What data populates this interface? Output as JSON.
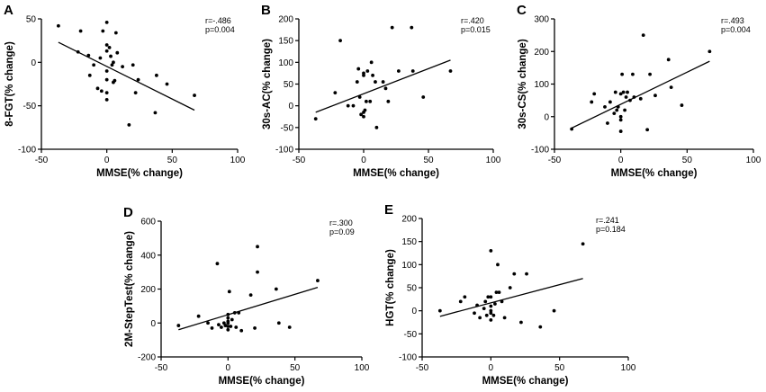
{
  "chart_data": [
    {
      "type": "scatter",
      "panel": "A",
      "xlabel": "MMSE(% change)",
      "ylabel": "8-FGT(% change)",
      "xlim": [
        -50,
        100
      ],
      "ylim": [
        -100,
        50
      ],
      "xticks": [
        -50,
        0,
        50,
        100
      ],
      "yticks": [
        -100,
        -50,
        0,
        50
      ],
      "annotation": [
        "r=-.486",
        "p=0.004"
      ],
      "fit": {
        "x": [
          -37,
          67
        ],
        "y": [
          23,
          -55
        ]
      },
      "points": [
        [
          -37,
          42
        ],
        [
          -22,
          12
        ],
        [
          -20,
          36
        ],
        [
          -14,
          8
        ],
        [
          -13,
          -15
        ],
        [
          -10,
          -3
        ],
        [
          -7,
          -30
        ],
        [
          -5,
          5
        ],
        [
          -4,
          -33
        ],
        [
          -3,
          36
        ],
        [
          0,
          46
        ],
        [
          0,
          20
        ],
        [
          0,
          13
        ],
        [
          0,
          -10
        ],
        [
          0,
          -20
        ],
        [
          0,
          -35
        ],
        [
          0,
          -43
        ],
        [
          2,
          17
        ],
        [
          3,
          7
        ],
        [
          4,
          -3
        ],
        [
          5,
          0
        ],
        [
          5,
          -23
        ],
        [
          6,
          -21
        ],
        [
          7,
          34
        ],
        [
          8,
          11
        ],
        [
          12,
          -5
        ],
        [
          17,
          -72
        ],
        [
          20,
          -3
        ],
        [
          22,
          -35
        ],
        [
          24,
          -20
        ],
        [
          37,
          -58
        ],
        [
          38,
          -15
        ],
        [
          46,
          -25
        ],
        [
          67,
          -38
        ]
      ]
    },
    {
      "type": "scatter",
      "panel": "B",
      "xlabel": "MMSE(% change)",
      "ylabel": "30s-AC(% change)",
      "xlim": [
        -50,
        100
      ],
      "ylim": [
        -100,
        200
      ],
      "xticks": [
        -50,
        0,
        50,
        100
      ],
      "yticks": [
        -100,
        -50,
        0,
        50,
        100,
        150,
        200
      ],
      "annotation": [
        "r=.420",
        "p=0.015"
      ],
      "fit": {
        "x": [
          -37,
          67
        ],
        "y": [
          -15,
          105
        ]
      },
      "points": [
        [
          -37,
          -30
        ],
        [
          -22,
          30
        ],
        [
          -18,
          150
        ],
        [
          -12,
          0
        ],
        [
          -8,
          0
        ],
        [
          -5,
          55
        ],
        [
          -4,
          85
        ],
        [
          -3,
          20
        ],
        [
          -2,
          -20
        ],
        [
          0,
          -15
        ],
        [
          0,
          -25
        ],
        [
          0,
          75
        ],
        [
          0,
          70
        ],
        [
          1,
          -10
        ],
        [
          2,
          10
        ],
        [
          3,
          80
        ],
        [
          5,
          10
        ],
        [
          6,
          100
        ],
        [
          7,
          70
        ],
        [
          9,
          55
        ],
        [
          10,
          -50
        ],
        [
          15,
          55
        ],
        [
          17,
          40
        ],
        [
          19,
          10
        ],
        [
          22,
          180
        ],
        [
          27,
          80
        ],
        [
          37,
          180
        ],
        [
          38,
          80
        ],
        [
          46,
          20
        ],
        [
          67,
          80
        ]
      ]
    },
    {
      "type": "scatter",
      "panel": "C",
      "xlabel": "MMSE(% change)",
      "ylabel": "30s-CS(% change)",
      "xlim": [
        -50,
        100
      ],
      "ylim": [
        -100,
        300
      ],
      "xticks": [
        -50,
        0,
        50,
        100
      ],
      "yticks": [
        -100,
        0,
        100,
        200,
        300
      ],
      "annotation": [
        "r=.493",
        "p=0.004"
      ],
      "fit": {
        "x": [
          -37,
          67
        ],
        "y": [
          -35,
          170
        ]
      },
      "points": [
        [
          -37,
          -38
        ],
        [
          -22,
          45
        ],
        [
          -20,
          70
        ],
        [
          -12,
          30
        ],
        [
          -10,
          -20
        ],
        [
          -8,
          45
        ],
        [
          -5,
          10
        ],
        [
          -4,
          75
        ],
        [
          -3,
          20
        ],
        [
          -2,
          30
        ],
        [
          0,
          70
        ],
        [
          0,
          0
        ],
        [
          0,
          -10
        ],
        [
          0,
          -45
        ],
        [
          1,
          130
        ],
        [
          2,
          75
        ],
        [
          3,
          20
        ],
        [
          4,
          60
        ],
        [
          5,
          75
        ],
        [
          7,
          50
        ],
        [
          9,
          130
        ],
        [
          10,
          60
        ],
        [
          15,
          55
        ],
        [
          17,
          250
        ],
        [
          20,
          -40
        ],
        [
          22,
          130
        ],
        [
          26,
          65
        ],
        [
          36,
          175
        ],
        [
          38,
          90
        ],
        [
          46,
          35
        ],
        [
          67,
          200
        ]
      ]
    },
    {
      "type": "scatter",
      "panel": "D",
      "xlabel": "MMSE(% change)",
      "ylabel": "2M-StepTest(% change)",
      "xlim": [
        -50,
        100
      ],
      "ylim": [
        -200,
        600
      ],
      "xticks": [
        -50,
        0,
        50,
        100
      ],
      "yticks": [
        -200,
        0,
        200,
        400,
        600
      ],
      "annotation": [
        "r=.300",
        "p=0.09"
      ],
      "fit": {
        "x": [
          -37,
          67
        ],
        "y": [
          -40,
          210
        ]
      },
      "points": [
        [
          -37,
          -15
        ],
        [
          -22,
          40
        ],
        [
          -15,
          0
        ],
        [
          -12,
          -30
        ],
        [
          -8,
          350
        ],
        [
          -7,
          -10
        ],
        [
          -5,
          -25
        ],
        [
          -3,
          0
        ],
        [
          -2,
          -15
        ],
        [
          0,
          10
        ],
        [
          0,
          30
        ],
        [
          0,
          0
        ],
        [
          0,
          -20
        ],
        [
          0,
          -40
        ],
        [
          0,
          50
        ],
        [
          1,
          185
        ],
        [
          2,
          -20
        ],
        [
          3,
          20
        ],
        [
          5,
          60
        ],
        [
          6,
          -25
        ],
        [
          8,
          60
        ],
        [
          10,
          -45
        ],
        [
          17,
          165
        ],
        [
          20,
          -30
        ],
        [
          22,
          450
        ],
        [
          22,
          300
        ],
        [
          36,
          200
        ],
        [
          38,
          0
        ],
        [
          46,
          -25
        ],
        [
          67,
          250
        ]
      ]
    },
    {
      "type": "scatter",
      "panel": "E",
      "xlabel": "MMSE(% change)",
      "ylabel": "HGT(% change)",
      "xlim": [
        -50,
        100
      ],
      "ylim": [
        -100,
        200
      ],
      "xticks": [
        -50,
        0,
        50,
        100
      ],
      "yticks": [
        -100,
        -50,
        0,
        50,
        100,
        150,
        200
      ],
      "annotation": [
        "r=.241",
        "p=0.184"
      ],
      "fit": {
        "x": [
          -37,
          67
        ],
        "y": [
          -12,
          70
        ]
      },
      "points": [
        [
          -37,
          0
        ],
        [
          -22,
          20
        ],
        [
          -19,
          30
        ],
        [
          -12,
          -5
        ],
        [
          -10,
          12
        ],
        [
          -8,
          -15
        ],
        [
          -5,
          5
        ],
        [
          -4,
          20
        ],
        [
          -3,
          -10
        ],
        [
          -2,
          30
        ],
        [
          0,
          0
        ],
        [
          0,
          -20
        ],
        [
          0,
          -5
        ],
        [
          0,
          10
        ],
        [
          0,
          30
        ],
        [
          0,
          130
        ],
        [
          2,
          -10
        ],
        [
          3,
          15
        ],
        [
          4,
          40
        ],
        [
          5,
          100
        ],
        [
          6,
          40
        ],
        [
          8,
          20
        ],
        [
          10,
          -15
        ],
        [
          14,
          50
        ],
        [
          17,
          80
        ],
        [
          22,
          -25
        ],
        [
          26,
          80
        ],
        [
          36,
          -35
        ],
        [
          46,
          0
        ],
        [
          67,
          145
        ]
      ]
    }
  ]
}
